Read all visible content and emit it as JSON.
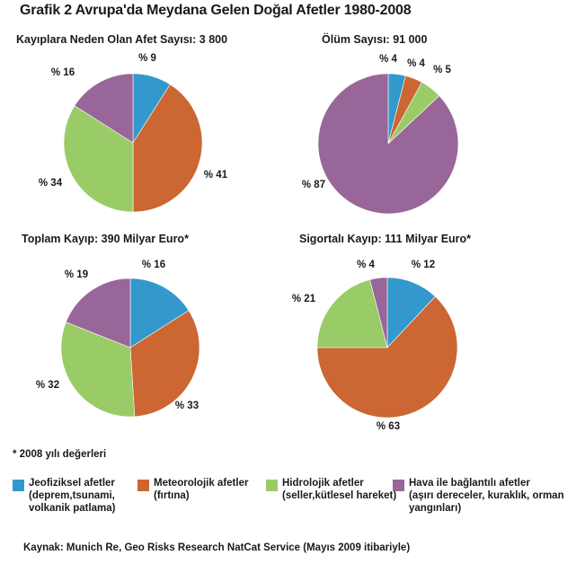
{
  "title": "Grafik 2 Avrupa'da Meydana Gelen Doğal Afetler 1980-2008",
  "colors": {
    "jeofiziksel": "#3399cc",
    "meteorolojik": "#cc6633",
    "hidrolojik": "#99cc66",
    "hava": "#996699"
  },
  "chart_data": [
    {
      "type": "pie",
      "title": "Kayıplara Neden Olan Afet Sayısı: 3 800",
      "slices": [
        {
          "key": "jeofiziksel",
          "value": 9,
          "label": "% 9"
        },
        {
          "key": "meteorolojik",
          "value": 41,
          "label": "% 41"
        },
        {
          "key": "hidrolojik",
          "value": 34,
          "label": "% 34"
        },
        {
          "key": "hava",
          "value": 16,
          "label": "% 16"
        }
      ]
    },
    {
      "type": "pie",
      "title": "Ölüm Sayısı: 91 000",
      "slices": [
        {
          "key": "jeofiziksel",
          "value": 4,
          "label": "% 4"
        },
        {
          "key": "meteorolojik",
          "value": 4,
          "label": "% 4"
        },
        {
          "key": "hidrolojik",
          "value": 5,
          "label": "% 5"
        },
        {
          "key": "hava",
          "value": 87,
          "label": "% 87"
        }
      ]
    },
    {
      "type": "pie",
      "title": "Toplam Kayıp: 390 Milyar Euro*",
      "slices": [
        {
          "key": "jeofiziksel",
          "value": 16,
          "label": "% 16"
        },
        {
          "key": "meteorolojik",
          "value": 33,
          "label": "% 33"
        },
        {
          "key": "hidrolojik",
          "value": 32,
          "label": "% 32"
        },
        {
          "key": "hava",
          "value": 19,
          "label": "% 19"
        }
      ]
    },
    {
      "type": "pie",
      "title": "Sigortalı Kayıp: 111 Milyar Euro*",
      "slices": [
        {
          "key": "jeofiziksel",
          "value": 12,
          "label": "% 12"
        },
        {
          "key": "meteorolojik",
          "value": 63,
          "label": "% 63"
        },
        {
          "key": "hidrolojik",
          "value": 21,
          "label": "% 21"
        },
        {
          "key": "hava",
          "value": 4,
          "label": "% 4"
        }
      ]
    }
  ],
  "footnote": "*  2008 yılı değerleri",
  "legend": [
    {
      "key": "jeofiziksel",
      "name": "Jeofiziksel afetler",
      "desc": "(deprem,tsunami, volkanik patlama)"
    },
    {
      "key": "meteorolojik",
      "name": "Meteorolojik afetler",
      "desc": "(fırtına)"
    },
    {
      "key": "hidrolojik",
      "name": "Hidrolojik afetler",
      "desc": "(seller,kütlesel hareket)"
    },
    {
      "key": "hava",
      "name": "Hava ile bağlantılı afetler",
      "desc": "(aşırı dereceler, kuraklık, orman yangınları)"
    }
  ],
  "source": "Kaynak: Munich Re, Geo Risks Research NatCat Service (Mayıs 2009 itibariyle)"
}
